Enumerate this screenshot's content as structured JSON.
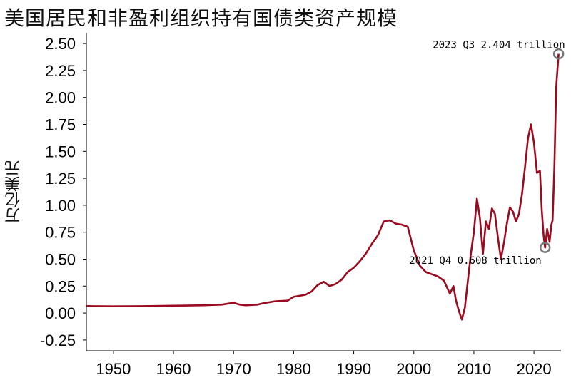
{
  "chart_data": {
    "type": "line",
    "title": "美国居民和非盈利组织持有国债类资产规模",
    "xlabel": "",
    "ylabel": "万亿美元",
    "xlim": [
      1945.5,
      2024.5
    ],
    "ylim": [
      -0.35,
      2.6
    ],
    "x_ticks": [
      1950,
      1960,
      1970,
      1980,
      1990,
      2000,
      2010,
      2020
    ],
    "y_ticks": [
      -0.25,
      0.0,
      0.25,
      0.5,
      0.75,
      1.0,
      1.25,
      1.5,
      1.75,
      2.0,
      2.25,
      2.5
    ],
    "y_tick_labels": [
      "-0.25",
      "0.00",
      "0.25",
      "0.50",
      "0.75",
      "1.00",
      "1.25",
      "1.50",
      "1.75",
      "2.00",
      "2.25",
      "2.50"
    ],
    "grid": false,
    "series": [
      {
        "color": "#9b0a1e",
        "points": [
          [
            1945.5,
            0.065
          ],
          [
            1950,
            0.062
          ],
          [
            1955,
            0.064
          ],
          [
            1960,
            0.068
          ],
          [
            1965,
            0.072
          ],
          [
            1968,
            0.078
          ],
          [
            1970,
            0.095
          ],
          [
            1971,
            0.078
          ],
          [
            1972,
            0.072
          ],
          [
            1974,
            0.078
          ],
          [
            1975,
            0.092
          ],
          [
            1977,
            0.11
          ],
          [
            1979,
            0.115
          ],
          [
            1980,
            0.15
          ],
          [
            1981,
            0.16
          ],
          [
            1982,
            0.17
          ],
          [
            1983,
            0.2
          ],
          [
            1984,
            0.26
          ],
          [
            1985,
            0.29
          ],
          [
            1986,
            0.25
          ],
          [
            1987,
            0.27
          ],
          [
            1988,
            0.31
          ],
          [
            1989,
            0.38
          ],
          [
            1990,
            0.42
          ],
          [
            1991,
            0.48
          ],
          [
            1992,
            0.55
          ],
          [
            1993,
            0.64
          ],
          [
            1994,
            0.72
          ],
          [
            1995,
            0.85
          ],
          [
            1996,
            0.86
          ],
          [
            1997,
            0.83
          ],
          [
            1998,
            0.82
          ],
          [
            1999,
            0.8
          ],
          [
            2000,
            0.58
          ],
          [
            2001,
            0.44
          ],
          [
            2002,
            0.38
          ],
          [
            2003,
            0.36
          ],
          [
            2004,
            0.34
          ],
          [
            2005,
            0.3
          ],
          [
            2006,
            0.18
          ],
          [
            2006.6,
            0.25
          ],
          [
            2007,
            0.12
          ],
          [
            2007.5,
            0.02
          ],
          [
            2008,
            -0.06
          ],
          [
            2008.5,
            0.05
          ],
          [
            2009,
            0.3
          ],
          [
            2009.5,
            0.55
          ],
          [
            2010,
            0.75
          ],
          [
            2010.5,
            1.06
          ],
          [
            2011,
            0.88
          ],
          [
            2011.5,
            0.55
          ],
          [
            2012,
            0.85
          ],
          [
            2012.5,
            0.78
          ],
          [
            2013,
            0.97
          ],
          [
            2013.5,
            0.92
          ],
          [
            2014,
            0.7
          ],
          [
            2014.5,
            0.5
          ],
          [
            2015,
            0.65
          ],
          [
            2015.5,
            0.83
          ],
          [
            2016,
            0.98
          ],
          [
            2016.5,
            0.94
          ],
          [
            2017,
            0.85
          ],
          [
            2017.5,
            0.92
          ],
          [
            2018,
            1.1
          ],
          [
            2018.5,
            1.35
          ],
          [
            2019,
            1.62
          ],
          [
            2019.5,
            1.75
          ],
          [
            2020,
            1.58
          ],
          [
            2020.5,
            1.3
          ],
          [
            2021,
            1.32
          ],
          [
            2021.3,
            0.95
          ],
          [
            2021.6,
            0.72
          ],
          [
            2021.85,
            0.608
          ],
          [
            2022.2,
            0.78
          ],
          [
            2022.6,
            0.66
          ],
          [
            2022.9,
            0.82
          ],
          [
            2023.1,
            0.86
          ],
          [
            2023.4,
            1.35
          ],
          [
            2023.7,
            2.1
          ],
          [
            2024.1,
            2.404
          ]
        ]
      }
    ],
    "annotations": [
      {
        "text": "2023 Q3 2.404 trillion",
        "x": 2024.1,
        "y": 2.404,
        "anchor": "above-left"
      },
      {
        "text": "2021 Q4 0.608 trillion",
        "x": 2021.85,
        "y": 0.608,
        "anchor": "below-left"
      }
    ],
    "marker_color": "#777777"
  }
}
